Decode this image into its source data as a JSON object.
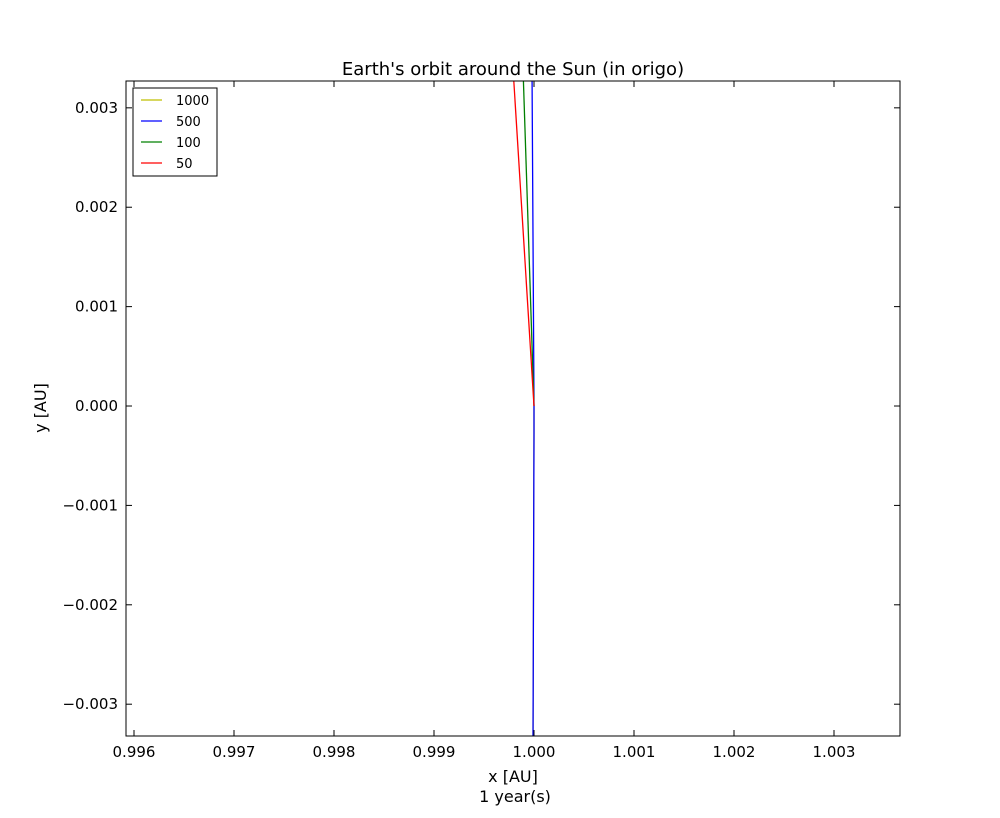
{
  "chart_data": {
    "type": "line",
    "title": "Earth's orbit around the Sun (in origo)",
    "xlabel": "x [AU]",
    "xlabel_sub": "1 year(s)",
    "ylabel": "y [AU]",
    "xlim": [
      0.99592,
      1.00366
    ],
    "ylim": [
      -0.00332,
      0.00327
    ],
    "xticks": [
      0.996,
      0.997,
      0.998,
      0.999,
      1.0,
      1.001,
      1.002,
      1.003
    ],
    "xtick_labels": [
      "0.996",
      "0.997",
      "0.998",
      "0.999",
      "1.000",
      "1.001",
      "1.002",
      "1.003"
    ],
    "yticks": [
      0.003,
      0.002,
      0.001,
      0.0,
      -0.001,
      -0.002,
      -0.003
    ],
    "ytick_labels": [
      "0.003",
      "0.002",
      "0.001",
      "0.000",
      "−0.001",
      "−0.002",
      "−0.003"
    ],
    "grid": false,
    "legend_position": "top-left",
    "series": [
      {
        "name": "1000",
        "color": "#bfbf00",
        "points": [
          [
            1.0,
            0.0
          ],
          [
            1.0,
            -0.00027
          ],
          [
            0.99999,
            -0.0034
          ]
        ]
      },
      {
        "name": "500",
        "color": "#0000ff",
        "points": [
          [
            0.99998,
            0.0034
          ],
          [
            1.0,
            0.0
          ],
          [
            1.0,
            -0.00027
          ],
          [
            0.99999,
            -0.0034
          ]
        ]
      },
      {
        "name": "100",
        "color": "#008000",
        "points": [
          [
            0.99989,
            0.0034
          ],
          [
            1.0,
            0.0
          ]
        ]
      },
      {
        "name": "50",
        "color": "#ff0000",
        "points": [
          [
            0.99979,
            0.0034
          ],
          [
            1.0,
            0.0
          ]
        ]
      }
    ]
  }
}
